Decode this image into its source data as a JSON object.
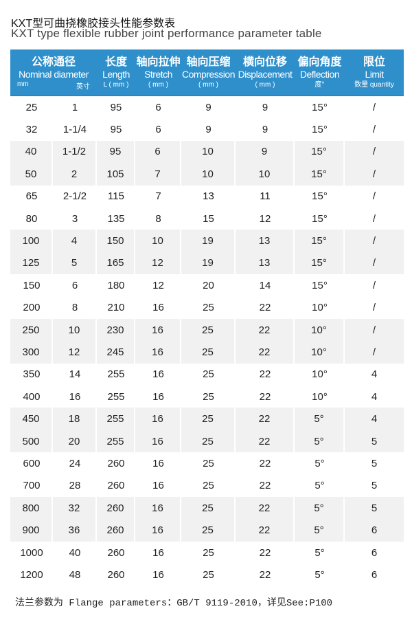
{
  "title_zh": "KXT型可曲挠橡胶接头性能参数表",
  "title_en": "KXT type flexible rubber joint performance parameter table",
  "headers": [
    {
      "zh": "公称通径",
      "en": "Nominal diameter",
      "unit_a": "mm",
      "unit_b": "英寸"
    },
    {
      "zh": "长度",
      "en": "Length",
      "unit": "L ( mm )"
    },
    {
      "zh": "轴向拉伸",
      "en": "Stretch",
      "unit": "( mm )"
    },
    {
      "zh": "轴向压缩",
      "en": "Compression",
      "unit": "( mm )"
    },
    {
      "zh": "横向位移",
      "en": "Displacement",
      "unit": "( mm )"
    },
    {
      "zh": "偏向角度",
      "en": "Deflection",
      "unit": "度°"
    },
    {
      "zh": "限位",
      "en": "Limit",
      "unit": "数量 quantity"
    }
  ],
  "rows": [
    [
      "25",
      "1",
      "95",
      "6",
      "9",
      "9",
      "15°",
      "/"
    ],
    [
      "32",
      "1-1/4",
      "95",
      "6",
      "9",
      "9",
      "15°",
      "/"
    ],
    [
      "40",
      "1-1/2",
      "95",
      "6",
      "10",
      "9",
      "15°",
      "/"
    ],
    [
      "50",
      "2",
      "105",
      "7",
      "10",
      "10",
      "15°",
      "/"
    ],
    [
      "65",
      "2-1/2",
      "115",
      "7",
      "13",
      "11",
      "15°",
      "/"
    ],
    [
      "80",
      "3",
      "135",
      "8",
      "15",
      "12",
      "15°",
      "/"
    ],
    [
      "100",
      "4",
      "150",
      "10",
      "19",
      "13",
      "15°",
      "/"
    ],
    [
      "125",
      "5",
      "165",
      "12",
      "19",
      "13",
      "15°",
      "/"
    ],
    [
      "150",
      "6",
      "180",
      "12",
      "20",
      "14",
      "15°",
      "/"
    ],
    [
      "200",
      "8",
      "210",
      "16",
      "25",
      "22",
      "10°",
      "/"
    ],
    [
      "250",
      "10",
      "230",
      "16",
      "25",
      "22",
      "10°",
      "/"
    ],
    [
      "300",
      "12",
      "245",
      "16",
      "25",
      "22",
      "10°",
      "/"
    ],
    [
      "350",
      "14",
      "255",
      "16",
      "25",
      "22",
      "10°",
      "4"
    ],
    [
      "400",
      "16",
      "255",
      "16",
      "25",
      "22",
      "10°",
      "4"
    ],
    [
      "450",
      "18",
      "255",
      "16",
      "25",
      "22",
      "5°",
      "4"
    ],
    [
      "500",
      "20",
      "255",
      "16",
      "25",
      "22",
      "5°",
      "5"
    ],
    [
      "600",
      "24",
      "260",
      "16",
      "25",
      "22",
      "5°",
      "5"
    ],
    [
      "700",
      "28",
      "260",
      "16",
      "25",
      "22",
      "5°",
      "5"
    ],
    [
      "800",
      "32",
      "260",
      "16",
      "25",
      "22",
      "5°",
      "5"
    ],
    [
      "900",
      "36",
      "260",
      "16",
      "25",
      "22",
      "5°",
      "6"
    ],
    [
      "1000",
      "40",
      "260",
      "16",
      "25",
      "22",
      "5°",
      "6"
    ],
    [
      "1200",
      "48",
      "260",
      "16",
      "25",
      "22",
      "5°",
      "6"
    ]
  ],
  "footer": "法兰参数为 Flange parameters：GB/T 9119-2010，详见See:P100",
  "colors": {
    "header_bg": "#2f8fcb",
    "band": "#f1f1f1"
  }
}
